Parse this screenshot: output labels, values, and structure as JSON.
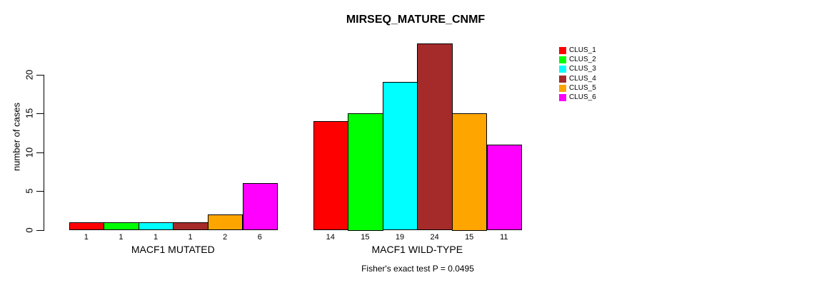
{
  "chart_data": {
    "type": "bar",
    "title": "MIRSEQ_MATURE_CNMF",
    "ylabel": "number of cases",
    "xlabel": "",
    "categories": [
      "MACF1 MUTATED",
      "MACF1 WILD-TYPE"
    ],
    "series": [
      {
        "name": "CLUS_1",
        "color": "#FF0000",
        "values": [
          1,
          14
        ]
      },
      {
        "name": "CLUS_2",
        "color": "#00FF00",
        "values": [
          1,
          15
        ]
      },
      {
        "name": "CLUS_3",
        "color": "#00FFFF",
        "values": [
          1,
          19
        ]
      },
      {
        "name": "CLUS_4",
        "color": "#A52A2A",
        "values": [
          1,
          24
        ]
      },
      {
        "name": "CLUS_5",
        "color": "#FFA500",
        "values": [
          2,
          15
        ]
      },
      {
        "name": "CLUS_6",
        "color": "#FF00FF",
        "values": [
          6,
          11
        ]
      }
    ],
    "yticks": [
      0,
      5,
      10,
      15,
      20
    ],
    "ylim": [
      0,
      24
    ],
    "grid": false,
    "legend_position": "right",
    "annotation": "Fisher's exact test P = 0.0495"
  }
}
